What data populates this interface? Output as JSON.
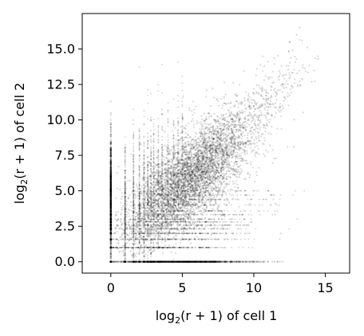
{
  "chart_data": {
    "type": "scatter",
    "title": "",
    "xlabel": {
      "log": "log",
      "base": "2",
      "arg": "(r + 1) of cell 1"
    },
    "ylabel": {
      "log": "log",
      "base": "2",
      "arg": "(r + 1) of cell 2"
    },
    "xlim": [
      -2.0,
      16.7
    ],
    "ylim": [
      -0.8,
      17.5
    ],
    "xticks": [
      0,
      5,
      10,
      15
    ],
    "xtick_labels": [
      "0",
      "5",
      "10",
      "15"
    ],
    "yticks": [
      0.0,
      2.5,
      5.0,
      7.5,
      10.0,
      12.5,
      15.0
    ],
    "ytick_labels": [
      "0.0",
      "2.5",
      "5.0",
      "7.5",
      "10.0",
      "12.5",
      "15.0"
    ],
    "grid": false,
    "marker_color": "#000000",
    "marker_alpha": 0.15,
    "n_points_approx": 9000,
    "series": [
      {
        "description_points": "representative sampled points (x, y)",
        "points": [
          [
            0,
            0
          ],
          [
            0,
            1
          ],
          [
            0,
            1.58
          ],
          [
            0,
            2
          ],
          [
            0,
            2.32
          ],
          [
            0,
            2.58
          ],
          [
            0,
            3
          ],
          [
            0,
            3.17
          ],
          [
            0,
            3.32
          ],
          [
            0,
            3.58
          ],
          [
            0,
            4
          ],
          [
            0,
            4.5
          ],
          [
            0,
            5
          ],
          [
            0,
            5.5
          ],
          [
            0,
            6
          ],
          [
            0,
            6.5
          ],
          [
            0,
            7
          ],
          [
            0,
            7.5
          ],
          [
            0,
            8
          ],
          [
            0,
            8.5
          ],
          [
            0,
            9
          ],
          [
            0,
            9.5
          ],
          [
            0,
            10
          ],
          [
            0,
            10.5
          ],
          [
            0,
            11.3
          ],
          [
            1,
            0
          ],
          [
            1.58,
            0
          ],
          [
            2,
            0
          ],
          [
            2.32,
            0
          ],
          [
            2.58,
            0
          ],
          [
            3,
            0
          ],
          [
            3.32,
            0
          ],
          [
            4,
            0
          ],
          [
            4.5,
            0
          ],
          [
            5,
            0
          ],
          [
            5.5,
            0
          ],
          [
            6,
            0
          ],
          [
            6.5,
            0
          ],
          [
            7,
            0
          ],
          [
            7.5,
            0
          ],
          [
            8,
            0
          ],
          [
            9,
            0
          ],
          [
            10,
            0
          ],
          [
            11,
            0
          ],
          [
            12,
            0
          ],
          [
            1,
            1
          ],
          [
            1,
            2
          ],
          [
            1,
            3
          ],
          [
            1,
            4
          ],
          [
            1,
            5
          ],
          [
            1,
            6
          ],
          [
            1,
            7
          ],
          [
            1,
            8
          ],
          [
            2,
            2
          ],
          [
            2,
            4
          ],
          [
            2,
            6
          ],
          [
            2,
            8
          ],
          [
            3,
            3
          ],
          [
            3,
            5
          ],
          [
            3,
            7
          ],
          [
            3,
            9
          ],
          [
            4,
            4
          ],
          [
            4,
            6
          ],
          [
            4,
            8
          ],
          [
            5,
            5
          ],
          [
            5,
            6.5
          ],
          [
            5,
            8
          ],
          [
            6,
            6
          ],
          [
            6,
            7.5
          ],
          [
            6,
            9
          ],
          [
            7,
            6
          ],
          [
            7,
            8
          ],
          [
            7,
            9.5
          ],
          [
            8,
            7
          ],
          [
            8,
            8.3
          ],
          [
            8,
            10
          ],
          [
            9,
            8
          ],
          [
            9,
            10
          ],
          [
            10,
            9
          ],
          [
            10,
            11
          ],
          [
            11,
            10.5
          ],
          [
            11,
            11.5
          ],
          [
            12,
            11
          ],
          [
            12,
            12.5
          ],
          [
            12.5,
            15.5
          ],
          [
            13,
            16
          ],
          [
            13.2,
            16.5
          ],
          [
            14.5,
            14.3
          ],
          [
            12.8,
            8.1
          ],
          [
            11.5,
            4.1
          ]
        ]
      }
    ]
  }
}
